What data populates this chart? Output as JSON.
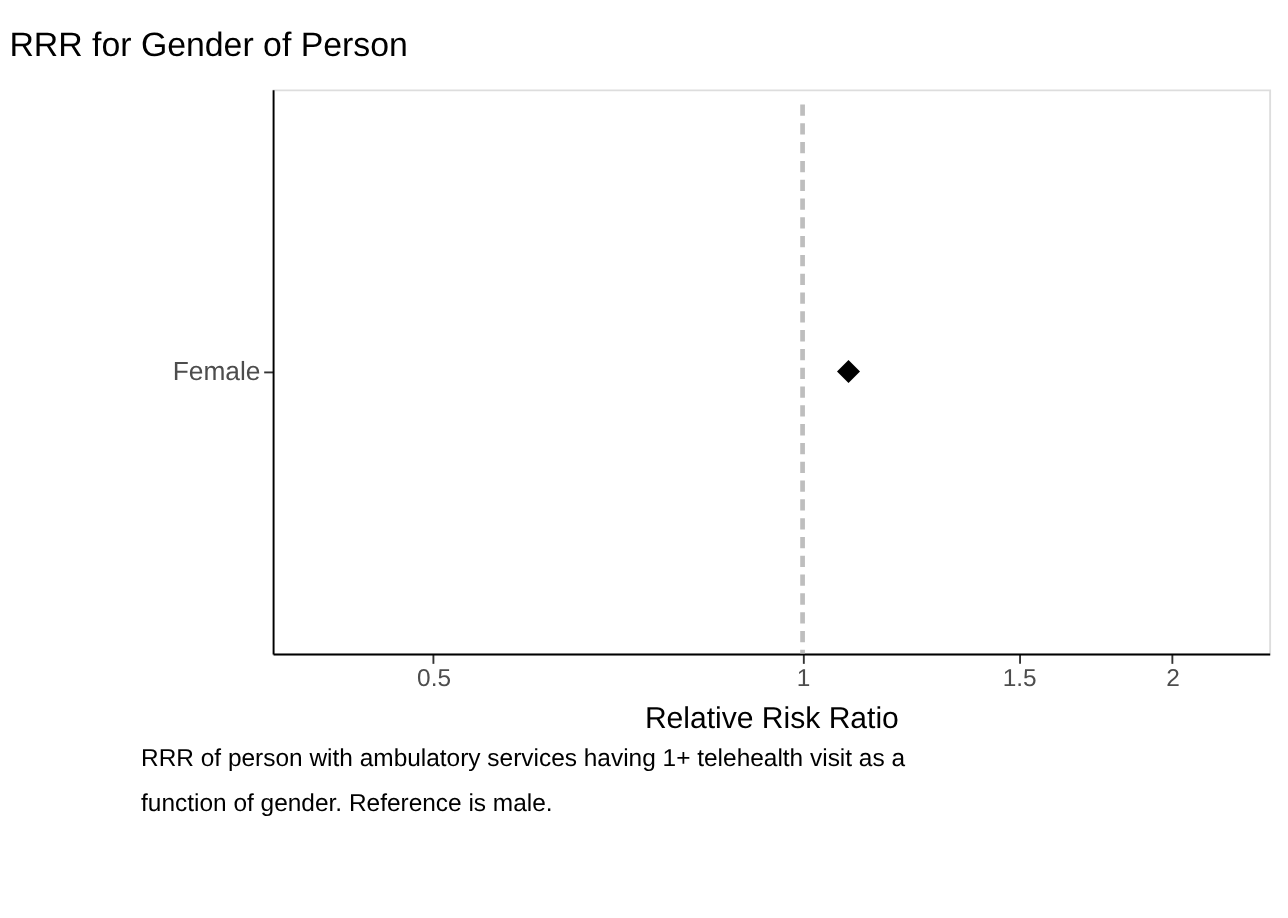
{
  "chart_data": {
    "type": "scatter",
    "title": "RRR for Gender of Person",
    "xlabel": "Relative Risk Ratio",
    "orientation": "horizontal",
    "categories": [
      "Female"
    ],
    "series": [
      {
        "color": "#000000",
        "values": [
          1.09
        ]
      }
    ],
    "marker": "diamond",
    "log": "x",
    "grid": false,
    "legend": false,
    "xlim": [
      0.37,
      2.4
    ],
    "xticks": [
      0.5,
      1,
      1.5,
      2
    ],
    "ref_lines": [
      {
        "axis": "x",
        "value": 1,
        "color": "#bebebe",
        "line_style": "dashed"
      }
    ],
    "annotations": [
      "RRR of person with ambulatory services having 1+ telehealth visit as a function of gender. Reference is male."
    ]
  }
}
